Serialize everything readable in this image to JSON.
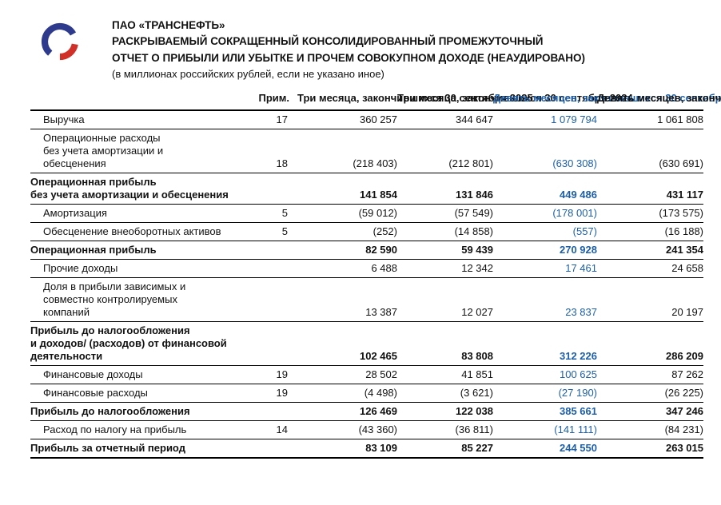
{
  "header": {
    "company": "ПАО «ТРАНСНЕФТЬ»",
    "title_line1": "РАСКРЫВАЕМЫЙ СОКРАЩЕННЫЙ КОНСОЛИДИРОВАННЫЙ ПРОМЕЖУТОЧНЫЙ",
    "title_line2": "ОТЧЕТ О ПРИБЫЛИ ИЛИ УБЫТКЕ И ПРОЧЕМ СОВОКУПНОМ ДОХОДЕ (НЕАУДИРОВАНО)",
    "units_note": "(в миллионах российских рублей, если не указано иное)"
  },
  "colors": {
    "accent_blue": "#1E5FA8",
    "logo_blue": "#2E3A8C",
    "logo_red": "#D03028"
  },
  "table": {
    "note_header": "Прим.",
    "highlight_col": 2,
    "columns": [
      {
        "text": "Три месяца,\nзакончившихся\n30 сентября\n2025",
        "highlight": false
      },
      {
        "text": "Три месяца,\nзакончившихся\n30 сентября\n2024",
        "highlight": false
      },
      {
        "text": "Девять месяцев,\nзакончившихся\n30 сентября\n2025",
        "highlight": true
      },
      {
        "text": "Девять месяцев,\nзакончившихся\n30 сентября\n2024",
        "highlight": false
      }
    ],
    "rows": [
      {
        "label": "Выручка",
        "note": "17",
        "values": [
          "360 257",
          "344 647",
          "1 079 794",
          "1 061 808"
        ],
        "bold": false
      },
      {
        "label": "Операционные расходы\nбез учета амортизации и\nобесценения",
        "note": "18",
        "values": [
          "(218 403)",
          "(212 801)",
          "(630 308)",
          "(630 691)"
        ],
        "bold": false
      },
      {
        "label": "Операционная прибыль\nбез учета амортизации и обесценения",
        "note": "",
        "values": [
          "141 854",
          "131 846",
          "449 486",
          "431 117"
        ],
        "bold": true
      },
      {
        "label": "Амортизация",
        "note": "5",
        "values": [
          "(59 012)",
          "(57 549)",
          "(178 001)",
          "(173 575)"
        ],
        "bold": false
      },
      {
        "label": "Обесценение внеоборотных активов",
        "note": "5",
        "values": [
          "(252)",
          "(14 858)",
          "(557)",
          "(16 188)"
        ],
        "bold": false
      },
      {
        "label": "Операционная прибыль",
        "note": "",
        "values": [
          "82 590",
          "59 439",
          "270 928",
          "241 354"
        ],
        "bold": true
      },
      {
        "label": "Прочие доходы",
        "note": "",
        "values": [
          "6 488",
          "12 342",
          "17 461",
          "24 658"
        ],
        "bold": false
      },
      {
        "label": "Доля в прибыли зависимых и\nсовместно контролируемых\nкомпаний",
        "note": "",
        "values": [
          "13 387",
          "12 027",
          "23 837",
          "20 197"
        ],
        "bold": false
      },
      {
        "label": "Прибыль до налогообложения\nи доходов/ (расходов) от финансовой\nдеятельности",
        "note": "",
        "values": [
          "102 465",
          "83 808",
          "312 226",
          "286 209"
        ],
        "bold": true
      },
      {
        "label": "Финансовые доходы",
        "note": "19",
        "values": [
          "28 502",
          "41 851",
          "100 625",
          "87 262"
        ],
        "bold": false
      },
      {
        "label": "Финансовые расходы",
        "note": "19",
        "values": [
          "(4 498)",
          "(3 621)",
          "(27 190)",
          "(26 225)"
        ],
        "bold": false
      },
      {
        "label": "Прибыль до налогообложения",
        "note": "",
        "values": [
          "126 469",
          "122 038",
          "385 661",
          "347 246"
        ],
        "bold": true
      },
      {
        "label": "Расход по налогу на прибыль",
        "note": "14",
        "values": [
          "(43 360)",
          "(36 811)",
          "(141 111)",
          "(84 231)"
        ],
        "bold": false
      },
      {
        "label": "Прибыль за отчетный период",
        "note": "",
        "values": [
          "83 109",
          "85 227",
          "244 550",
          "263 015"
        ],
        "bold": true
      }
    ]
  }
}
